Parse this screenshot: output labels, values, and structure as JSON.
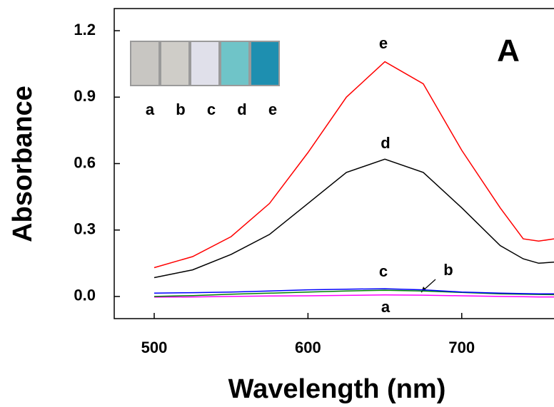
{
  "chart_data": {
    "type": "line",
    "x_label": "Wavelength (nm)",
    "y_label": "Absorbance",
    "panel_label": "A",
    "inset_labels": [
      "a",
      "b",
      "c",
      "d",
      "e"
    ],
    "x": [
      500,
      525,
      550,
      575,
      600,
      625,
      650,
      675,
      700,
      725,
      740,
      750,
      760
    ],
    "series": [
      {
        "name": "a",
        "color": "#ff00ff",
        "values": [
          -0.003,
          -0.002,
          0.0,
          0.002,
          0.003,
          0.005,
          0.007,
          0.006,
          0.003,
          0.0,
          -0.001,
          -0.002,
          -0.002
        ]
      },
      {
        "name": "b",
        "color": "#008000",
        "values": [
          0.0,
          0.004,
          0.01,
          0.015,
          0.02,
          0.025,
          0.028,
          0.025,
          0.018,
          0.012,
          0.01,
          0.009,
          0.008
        ]
      },
      {
        "name": "c",
        "color": "#0000ff",
        "values": [
          0.015,
          0.017,
          0.02,
          0.025,
          0.03,
          0.033,
          0.035,
          0.03,
          0.02,
          0.015,
          0.013,
          0.012,
          0.012
        ]
      },
      {
        "name": "d",
        "color": "#000000",
        "values": [
          0.085,
          0.12,
          0.19,
          0.28,
          0.42,
          0.56,
          0.62,
          0.56,
          0.4,
          0.23,
          0.17,
          0.15,
          0.155
        ]
      },
      {
        "name": "e",
        "color": "#ff0000",
        "values": [
          0.13,
          0.18,
          0.27,
          0.42,
          0.65,
          0.9,
          1.06,
          0.96,
          0.66,
          0.4,
          0.26,
          0.25,
          0.26
        ]
      }
    ],
    "xlim": [
      474,
      760
    ],
    "ylim": [
      -0.1,
      1.3
    ],
    "xticks": [
      500,
      600,
      700
    ],
    "yticks": [
      {
        "value": 0,
        "label": "0.0"
      },
      0.3,
      0.6,
      0.9,
      1.2
    ]
  }
}
